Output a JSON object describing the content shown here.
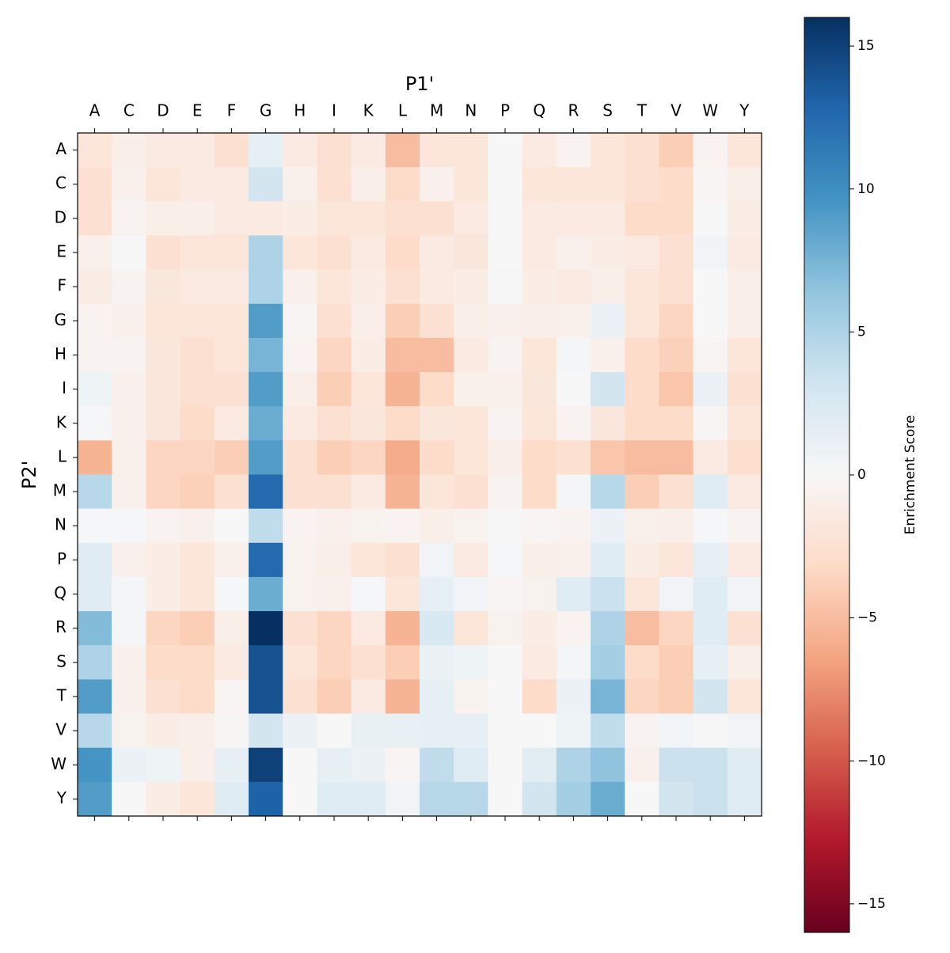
{
  "chart_data": {
    "type": "heatmap",
    "x_label": "P1'",
    "y_label": "P2'",
    "colorbar_label": "Enrichment Score",
    "colormap": "RdBu",
    "x_categories": [
      "A",
      "C",
      "D",
      "E",
      "F",
      "G",
      "H",
      "I",
      "K",
      "L",
      "M",
      "N",
      "P",
      "Q",
      "R",
      "S",
      "T",
      "V",
      "W",
      "Y"
    ],
    "y_categories": [
      "A",
      "C",
      "D",
      "E",
      "F",
      "G",
      "H",
      "I",
      "K",
      "L",
      "M",
      "N",
      "P",
      "Q",
      "R",
      "S",
      "T",
      "V",
      "W",
      "Y"
    ],
    "values": [
      [
        -2,
        -1,
        -1.5,
        -1.5,
        -2.5,
        1.5,
        -1.5,
        -2.5,
        -1.5,
        -5,
        -2,
        -2,
        0,
        -1.5,
        -0.5,
        -2,
        -2.5,
        -4,
        -0.5,
        -2
      ],
      [
        -2.5,
        -0.8,
        -2,
        -1.5,
        -1.5,
        3,
        -0.8,
        -2.5,
        -1,
        -3,
        -0.8,
        -2,
        0,
        -2,
        -2,
        -2,
        -2.5,
        -3,
        -0.3,
        -1
      ],
      [
        -2.5,
        -0.5,
        -1,
        -1,
        -1.5,
        -1.5,
        -1.2,
        -2,
        -2,
        -2.5,
        -2.5,
        -1.5,
        0,
        -1.5,
        -1.5,
        -1.5,
        -3,
        -3,
        0,
        -1.2
      ],
      [
        -0.8,
        0,
        -2.5,
        -2,
        -2,
        5,
        -2,
        -2.5,
        -1.5,
        -3,
        -1.5,
        -1.8,
        0,
        -1.5,
        -0.8,
        -1.2,
        -1.5,
        -2.5,
        0.5,
        -1.5
      ],
      [
        -1.2,
        -0.5,
        -1.8,
        -1.5,
        -1.5,
        5,
        -0.8,
        -2,
        -1.2,
        -2.5,
        -1.5,
        -1.2,
        0.1,
        -1.2,
        -1.5,
        -1,
        -2,
        -2.5,
        0,
        -1
      ],
      [
        -0.5,
        -0.8,
        -2,
        -2,
        -2,
        9,
        -0.3,
        -2.5,
        -1,
        -4,
        -2.5,
        -1,
        -0.8,
        -1,
        -0.8,
        1,
        -2,
        -3.5,
        0,
        -1
      ],
      [
        -0.5,
        -0.5,
        -1.8,
        -2.5,
        -2,
        7.5,
        -0.5,
        -3.5,
        -1.2,
        -5,
        -5,
        -1.5,
        -0.5,
        -2,
        0.3,
        -0.8,
        -3,
        -3.8,
        -0.3,
        -2
      ],
      [
        0.8,
        -0.8,
        -1.8,
        -2.5,
        -2.5,
        9,
        -1,
        -4,
        -2,
        -5.5,
        -3,
        -0.8,
        -0.8,
        -1.8,
        0,
        3,
        -3,
        -4.5,
        1,
        -2.5
      ],
      [
        0.2,
        -0.8,
        -1.8,
        -3,
        -1.5,
        8,
        -1.5,
        -2.5,
        -1.8,
        -3,
        -1.8,
        -2,
        -0.5,
        -2,
        -0.5,
        -1.8,
        -3,
        -3,
        -0.2,
        -2
      ],
      [
        -5.5,
        -0.8,
        -3.5,
        -3.5,
        -4,
        9,
        -2.5,
        -4,
        -3.5,
        -6,
        -3,
        -2,
        -1,
        -3,
        -2.5,
        -4.5,
        -5,
        -5,
        -1.5,
        -2.8
      ],
      [
        4.5,
        -0.8,
        -3.5,
        -3.8,
        -2.5,
        12.5,
        -2.5,
        -2.5,
        -1.5,
        -5.5,
        -2,
        -2.5,
        -0.5,
        -3,
        0.3,
        4.5,
        -4,
        -2.5,
        2,
        -1.5
      ],
      [
        0.2,
        0.2,
        -0.5,
        -0.8,
        0,
        4,
        -0.5,
        -0.8,
        -0.6,
        -0.5,
        -1,
        -0.6,
        0.1,
        -0.3,
        -0.5,
        1,
        -0.8,
        -1,
        0.2,
        -0.5
      ],
      [
        2,
        -0.8,
        -1.2,
        -2,
        -0.8,
        12.5,
        -0.6,
        -1,
        -2,
        -2.5,
        0.5,
        -1.5,
        0.2,
        -1,
        -0.8,
        2,
        -1.2,
        -2,
        1.5,
        -1.5
      ],
      [
        2,
        0.3,
        -1.2,
        -2,
        0.2,
        8,
        -0.6,
        -0.8,
        0.2,
        -2,
        1.5,
        0.5,
        -0.3,
        -0.6,
        2,
        3.5,
        -2,
        0.5,
        2,
        0.5
      ],
      [
        7,
        0.3,
        -3.5,
        -4,
        -1,
        16,
        -2.5,
        -3.5,
        -1.5,
        -5.5,
        2.5,
        -2,
        -0.6,
        -1.2,
        -0.5,
        5,
        -5,
        -3.5,
        2,
        -2.5
      ],
      [
        5,
        -0.8,
        -3,
        -3,
        -1.5,
        14,
        -2,
        -3.5,
        -2.5,
        -4,
        1,
        0.8,
        0,
        -1.5,
        0.3,
        5.5,
        -3,
        -4,
        1.5,
        -1
      ],
      [
        9,
        -0.8,
        -2.5,
        -3,
        -0.3,
        14,
        -2.5,
        -4,
        -1.5,
        -5.5,
        1.5,
        -0.6,
        0,
        -3,
        1,
        7.5,
        -3.5,
        -4,
        3,
        -2
      ],
      [
        4.5,
        -0.6,
        -1.2,
        -1,
        -0.2,
        3,
        1,
        0,
        1.2,
        1.2,
        1.5,
        1.5,
        0,
        0,
        0.8,
        4,
        -0.5,
        0.5,
        0.1,
        0.5
      ],
      [
        9.5,
        1,
        0.8,
        -1,
        1.5,
        15,
        0,
        1.5,
        1,
        -0.3,
        4,
        2,
        0,
        1.8,
        5,
        6.5,
        -0.8,
        3.5,
        3.5,
        2
      ],
      [
        9,
        0,
        -1.2,
        -2,
        2,
        13,
        0,
        2,
        2,
        0.5,
        4.5,
        4.5,
        0,
        3,
        5.5,
        8,
        0,
        3,
        3.5,
        2
      ]
    ],
    "zlim": [
      -16,
      16
    ],
    "zticks": [
      {
        "value": -15,
        "label": "−15"
      },
      {
        "value": -10,
        "label": "−10"
      },
      {
        "value": -5,
        "label": "−5"
      },
      0,
      5,
      10,
      15
    ]
  }
}
